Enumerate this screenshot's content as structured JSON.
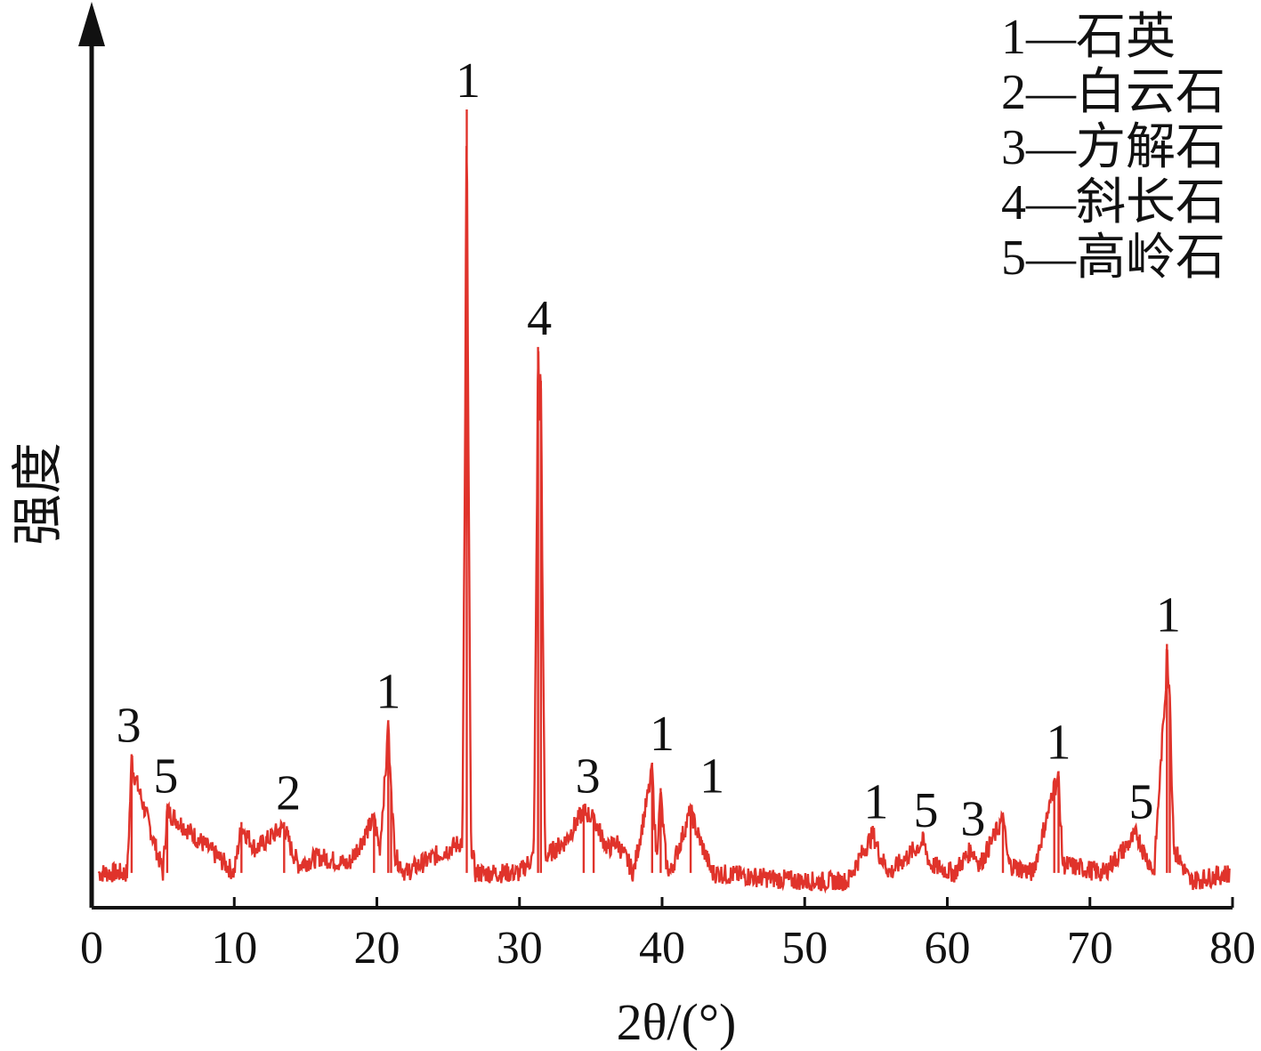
{
  "chart_data": {
    "type": "line",
    "title": "",
    "xlabel": "2θ/(°)",
    "ylabel": "强度",
    "xlim": [
      0,
      80
    ],
    "ylim": [
      0,
      100
    ],
    "xticks": [
      0,
      10,
      20,
      30,
      40,
      50,
      60,
      70,
      80
    ],
    "grid": false,
    "legend_position": "top-right",
    "line_color": "#e0332b",
    "axis_color": "#111111",
    "legend": [
      "1—石英",
      "2—白云石",
      "3—方解石",
      "4—斜长石",
      "5—高岭石"
    ],
    "series": [
      {
        "x": [
          0.5,
          2.5,
          2.8,
          5.0,
          5.3,
          10,
          10.5,
          11.5,
          13.5,
          14.0,
          14.5,
          16,
          18,
          19.8,
          20.2,
          20.8,
          21.0,
          21.3,
          22,
          26.0,
          26.3,
          26.6,
          26.9,
          30,
          31.0,
          31.3,
          31.5,
          31.8,
          33.2,
          34.5,
          35.2,
          36.2,
          36.8,
          38,
          39.3,
          39.6,
          39.9,
          40.3,
          40.6,
          42.0,
          42.5,
          43.5,
          50,
          53,
          54.8,
          55.3,
          56,
          58.3,
          58.8,
          60.5,
          61.7,
          62.3,
          63.9,
          64.3,
          66,
          67.5,
          67.8,
          68.1,
          71,
          73.3,
          73.7,
          74.5,
          75.4,
          75.6,
          75.9,
          77,
          79.8
        ],
        "y": [
          2,
          2,
          16,
          2,
          10,
          2,
          8,
          5,
          8,
          5,
          3,
          4,
          3,
          9,
          5,
          20,
          12,
          4,
          2,
          6,
          92,
          6,
          2,
          2,
          4,
          64,
          60,
          4,
          6,
          10,
          9,
          5,
          6,
          2,
          15,
          4,
          12,
          3,
          2,
          10,
          7,
          2,
          1,
          1,
          7,
          4,
          2,
          6,
          3,
          2,
          5,
          3,
          9,
          3,
          2,
          13,
          14,
          3,
          2,
          7,
          5,
          2,
          29,
          23,
          5,
          1,
          2
        ]
      }
    ],
    "peak_labels": [
      {
        "x": 2.6,
        "y": 16,
        "text": "3"
      },
      {
        "x": 5.2,
        "y": 10,
        "text": "5"
      },
      {
        "x": 13.8,
        "y": 8,
        "text": "2"
      },
      {
        "x": 20.8,
        "y": 20,
        "text": "1"
      },
      {
        "x": 26.4,
        "y": 92,
        "text": "1"
      },
      {
        "x": 31.4,
        "y": 64,
        "text": "4"
      },
      {
        "x": 34.8,
        "y": 10,
        "text": "3"
      },
      {
        "x": 40.0,
        "y": 15,
        "text": "1"
      },
      {
        "x": 43.5,
        "y": 10,
        "text": "1"
      },
      {
        "x": 55.0,
        "y": 7,
        "text": "1"
      },
      {
        "x": 58.5,
        "y": 6,
        "text": "5"
      },
      {
        "x": 61.8,
        "y": 5,
        "text": "3"
      },
      {
        "x": 67.8,
        "y": 14,
        "text": "1"
      },
      {
        "x": 73.6,
        "y": 7,
        "text": "5"
      },
      {
        "x": 75.5,
        "y": 29,
        "text": "1"
      }
    ]
  }
}
